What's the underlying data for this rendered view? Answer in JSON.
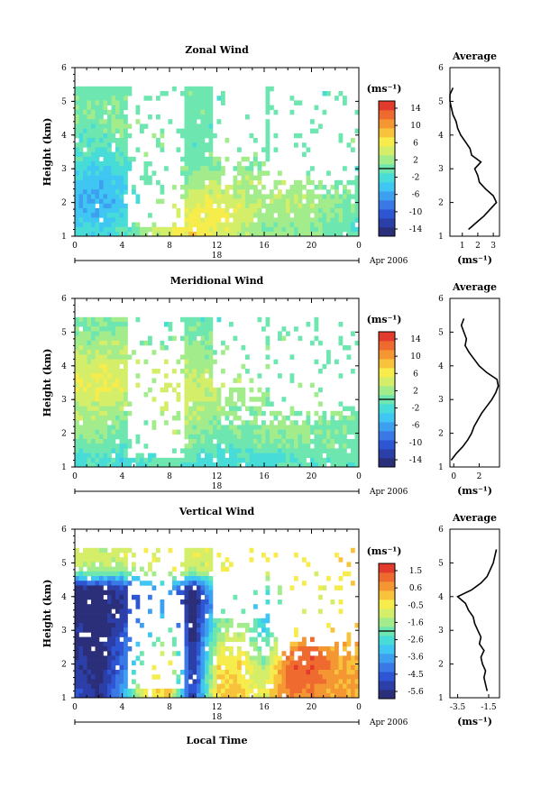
{
  "figure": {
    "x_ticks": [
      "0",
      "4",
      "8",
      "12",
      "16",
      "20",
      "0"
    ],
    "date_day": "18",
    "date_label": "Apr 2006",
    "xlabel": "Local Time"
  },
  "panels": [
    {
      "title": "Zonal Wind",
      "ylabel": "Height (km)",
      "y_ticks": [
        "1",
        "2",
        "3",
        "4",
        "5",
        "6"
      ],
      "cbar_unit": "(ms⁻¹)",
      "cbar_ticks": [
        "14",
        "10",
        "6",
        "2",
        "-2",
        "-6",
        "-10",
        "-14"
      ],
      "avg_title": "Average",
      "avg_xticks": [
        "1",
        "2",
        "3"
      ],
      "avg_yticks": [
        "1",
        "2",
        "3",
        "4",
        "5",
        "6"
      ],
      "avg_xlabel": "(ms⁻¹)"
    },
    {
      "title": "Meridional Wind",
      "ylabel": "Height (km)",
      "y_ticks": [
        "1",
        "2",
        "3",
        "4",
        "5",
        "6"
      ],
      "cbar_unit": "(ms⁻¹)",
      "cbar_ticks": [
        "14",
        "10",
        "6",
        "2",
        "-2",
        "-6",
        "-10",
        "-14"
      ],
      "avg_title": "Average",
      "avg_xticks": [
        "0",
        "2"
      ],
      "avg_yticks": [
        "1",
        "2",
        "3",
        "4",
        "5",
        "6"
      ],
      "avg_xlabel": "(ms⁻¹)"
    },
    {
      "title": "Vertical Wind",
      "ylabel": "Height (km)",
      "y_ticks": [
        "1",
        "2",
        "3",
        "4",
        "5",
        "6"
      ],
      "cbar_unit": "(ms⁻¹)",
      "cbar_ticks": [
        "1.5",
        "0.6",
        "-0.5",
        "-1.6",
        "-2.6",
        "-3.6",
        "-4.5",
        "-5.6"
      ],
      "avg_title": "Average",
      "avg_xticks": [
        "-3.5",
        "-1.5"
      ],
      "avg_yticks": [
        "1",
        "2",
        "3",
        "4",
        "5",
        "6"
      ],
      "avg_xlabel": "(ms⁻¹)"
    }
  ],
  "colors": {
    "colormap": [
      "#2b2f7a",
      "#2c3ea8",
      "#2e56d4",
      "#3a78e6",
      "#3d9ff0",
      "#3fc6f2",
      "#48dcd8",
      "#6ee6b0",
      "#a3ec8c",
      "#d4ee6a",
      "#f6ec4c",
      "#f8c23c",
      "#f49632",
      "#ee6a2e",
      "#e23b2e"
    ],
    "zero_line": "#000000"
  },
  "chart_data": [
    {
      "type": "heatmap",
      "title": "Zonal Wind",
      "ylabel": "Height (km)",
      "xlim": [
        0,
        24
      ],
      "ylim": [
        1,
        6
      ],
      "clim": [
        -14,
        14
      ],
      "value_grid": {
        "heights_km": [
          1.25,
          1.75,
          2.25,
          2.75,
          3.25,
          3.75,
          4.25,
          4.75,
          5.25
        ],
        "times_h": [
          0,
          2,
          4,
          6,
          8,
          10,
          12,
          14,
          16,
          18,
          20,
          22,
          24
        ],
        "values": [
          [
            -2,
            -3,
            -1,
            2,
            4,
            6,
            5,
            3,
            1,
            2,
            1,
            0,
            -1
          ],
          [
            -4,
            -5,
            -3,
            0,
            2,
            5,
            6,
            4,
            2,
            2,
            2,
            1,
            0
          ],
          [
            -4,
            -5,
            -3,
            0,
            1,
            3,
            4,
            3,
            2,
            3,
            2,
            1,
            0
          ],
          [
            -3,
            -4,
            -2,
            0,
            0,
            1,
            2,
            2,
            2,
            2,
            1,
            0,
            0
          ],
          [
            -1,
            -2,
            -1,
            0,
            0,
            0,
            1,
            1,
            1,
            1,
            0,
            0,
            0
          ],
          [
            0,
            -1,
            0,
            1,
            0,
            0,
            0,
            0,
            0,
            0,
            0,
            0,
            0
          ],
          [
            0,
            0,
            1,
            1,
            0,
            0,
            0,
            0,
            0,
            0,
            0,
            0,
            0
          ],
          [
            1,
            1,
            1,
            0,
            0,
            0,
            0,
            0,
            0,
            0,
            0,
            0,
            0
          ],
          [
            0,
            0,
            0,
            0,
            0,
            0,
            0,
            0,
            0,
            0,
            0,
            0,
            0
          ]
        ]
      },
      "average_profile": {
        "xlim": [
          0.2,
          3.4
        ],
        "height_km": [
          1.2,
          1.4,
          1.6,
          1.8,
          2.0,
          2.2,
          2.4,
          2.6,
          2.8,
          3.0,
          3.2,
          3.4,
          3.6,
          3.8,
          4.0,
          4.2,
          4.4,
          4.6,
          4.8,
          5.0,
          5.2,
          5.4
        ],
        "value": [
          1.4,
          1.9,
          2.4,
          2.8,
          3.2,
          3.0,
          2.5,
          2.1,
          2.0,
          1.8,
          2.2,
          1.6,
          1.5,
          1.2,
          0.9,
          0.7,
          0.6,
          0.4,
          0.3,
          0.2,
          0.2,
          0.4
        ]
      }
    },
    {
      "type": "heatmap",
      "title": "Meridional Wind",
      "ylabel": "Height (km)",
      "xlim": [
        0,
        24
      ],
      "ylim": [
        1,
        6
      ],
      "clim": [
        -14,
        14
      ],
      "value_grid": {
        "heights_km": [
          1.25,
          1.75,
          2.25,
          2.75,
          3.25,
          3.75,
          4.25,
          4.75,
          5.25
        ],
        "times_h": [
          0,
          2,
          4,
          6,
          8,
          10,
          12,
          14,
          16,
          18,
          20,
          22,
          24
        ],
        "values": [
          [
            -2,
            -1,
            -2,
            -1,
            0,
            -1,
            -2,
            -1,
            -2,
            -1,
            -1,
            0,
            0
          ],
          [
            1,
            1,
            0,
            1,
            2,
            1,
            0,
            0,
            1,
            1,
            1,
            1,
            0
          ],
          [
            2,
            2,
            1,
            1,
            2,
            2,
            1,
            1,
            1,
            2,
            1,
            1,
            0
          ],
          [
            3,
            3,
            2,
            2,
            3,
            3,
            2,
            1,
            1,
            1,
            1,
            0,
            0
          ],
          [
            4,
            5,
            4,
            3,
            4,
            4,
            3,
            2,
            2,
            1,
            1,
            0,
            0
          ],
          [
            4,
            5,
            4,
            3,
            3,
            3,
            2,
            2,
            1,
            1,
            0,
            0,
            0
          ],
          [
            3,
            3,
            3,
            2,
            2,
            2,
            1,
            1,
            1,
            0,
            0,
            0,
            0
          ],
          [
            1,
            2,
            2,
            1,
            1,
            1,
            1,
            0,
            0,
            0,
            0,
            0,
            0
          ],
          [
            0,
            1,
            1,
            0,
            0,
            0,
            0,
            0,
            0,
            0,
            0,
            0,
            0
          ]
        ]
      },
      "average_profile": {
        "xlim": [
          -0.3,
          3.6
        ],
        "height_km": [
          1.2,
          1.4,
          1.6,
          1.8,
          2.0,
          2.2,
          2.4,
          2.6,
          2.8,
          3.0,
          3.2,
          3.4,
          3.6,
          3.8,
          4.0,
          4.2,
          4.4,
          4.6,
          4.8,
          5.0,
          5.2,
          5.4
        ],
        "value": [
          -0.2,
          0.2,
          0.7,
          1.1,
          1.4,
          1.6,
          1.9,
          2.2,
          2.6,
          3.0,
          3.3,
          3.5,
          3.4,
          2.6,
          2.0,
          1.6,
          1.2,
          0.9,
          1.0,
          0.8,
          0.6,
          0.8
        ]
      }
    },
    {
      "type": "heatmap",
      "title": "Vertical Wind",
      "ylabel": "Height (km)",
      "xlim": [
        0,
        24
      ],
      "ylim": [
        1,
        6
      ],
      "clim": [
        -5.6,
        1.5
      ],
      "value_grid": {
        "heights_km": [
          1.25,
          1.75,
          2.25,
          2.75,
          3.25,
          3.75,
          4.25,
          4.75,
          5.25
        ],
        "times_h": [
          0,
          2,
          4,
          6,
          8,
          10,
          12,
          14,
          16,
          18,
          20,
          22,
          24
        ],
        "values": [
          [
            -4.5,
            -5.2,
            -3.5,
            -0.5,
            -0.4,
            -5.0,
            -0.3,
            -0.3,
            -1.0,
            0.6,
            0.5,
            0.2,
            0.0
          ],
          [
            -4.8,
            -5.4,
            -4.0,
            -1.0,
            -0.6,
            -5.2,
            -0.5,
            -0.4,
            -1.2,
            0.8,
            0.9,
            0.3,
            0.0
          ],
          [
            -5.0,
            -5.5,
            -4.2,
            -1.5,
            -0.8,
            -5.3,
            -0.8,
            -0.6,
            -2.0,
            0.6,
            1.0,
            0.3,
            0.0
          ],
          [
            -5.2,
            -5.5,
            -4.5,
            -2.5,
            -1.5,
            -5.5,
            -1.5,
            -1.0,
            -2.5,
            -0.5,
            0.5,
            0.0,
            0.0
          ],
          [
            -5.3,
            -5.6,
            -4.8,
            -3.5,
            -2.5,
            -5.6,
            -2.0,
            -1.5,
            -3.0,
            -1.0,
            -0.5,
            -0.5,
            0.0
          ],
          [
            -5.4,
            -5.6,
            -5.0,
            -4.0,
            -3.5,
            -5.6,
            -3.0,
            -2.0,
            -3.0,
            -1.5,
            -1.0,
            -1.0,
            0.0
          ],
          [
            -5.3,
            -5.5,
            -4.8,
            -3.8,
            -3.2,
            -5.4,
            -2.5,
            -1.5,
            -2.5,
            -1.0,
            -0.8,
            -0.8,
            0.0
          ],
          [
            -1.6,
            -1.5,
            -1.8,
            -1.2,
            -1.0,
            -1.5,
            -1.0,
            -0.8,
            -1.0,
            -0.8,
            -0.6,
            -0.6,
            0.0
          ],
          [
            -1.0,
            -1.2,
            -1.0,
            -0.8,
            -0.8,
            -1.0,
            -0.8,
            -0.6,
            -0.6,
            -0.5,
            -0.5,
            -0.4,
            0.0
          ]
        ]
      },
      "average_profile": {
        "xlim": [
          -4.0,
          -0.8
        ],
        "height_km": [
          1.2,
          1.4,
          1.6,
          1.8,
          2.0,
          2.2,
          2.4,
          2.6,
          2.8,
          3.0,
          3.2,
          3.4,
          3.6,
          3.8,
          4.0,
          4.2,
          4.4,
          4.6,
          4.8,
          5.0,
          5.2,
          5.4
        ],
        "value": [
          -1.6,
          -1.7,
          -1.8,
          -1.7,
          -1.9,
          -2.0,
          -1.8,
          -2.1,
          -2.0,
          -2.2,
          -2.4,
          -2.5,
          -2.8,
          -3.0,
          -3.5,
          -2.6,
          -2.0,
          -1.6,
          -1.4,
          -1.2,
          -1.1,
          -1.0
        ]
      }
    }
  ]
}
